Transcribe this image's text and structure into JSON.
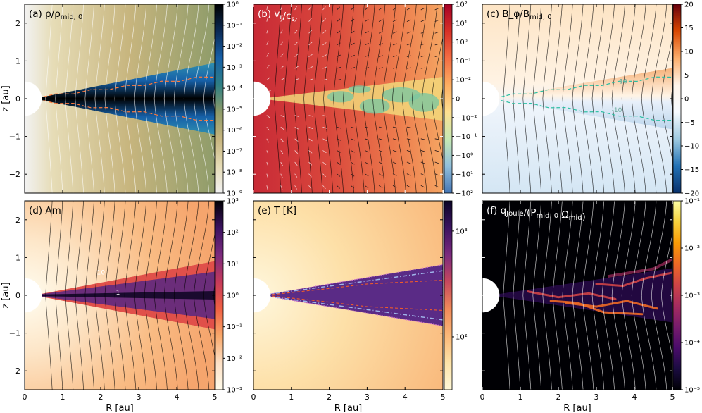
{
  "chart_data": {
    "type": "heatmap",
    "figure": "Six-panel disk simulation maps",
    "x_axis": {
      "label": "R [au]",
      "range": [
        0,
        5
      ],
      "ticks": [
        "0",
        "1",
        "2",
        "3",
        "4",
        "5"
      ]
    },
    "y_axis": {
      "label": "z [au]",
      "range": [
        -2.5,
        2.5
      ],
      "ticks": [
        "2",
        "1",
        "0",
        "−1",
        "−2"
      ],
      "tick_values": [
        2,
        1,
        0,
        -1,
        -2
      ]
    },
    "panels": [
      {
        "id": "a",
        "title": "(a) ρ/ρ_mid, 0",
        "title_color": "#000000",
        "colormap": [
          "#f2f2f2",
          "#e6dcb6",
          "#c7b57e",
          "#8f9c6a",
          "#2f7f83",
          "#1660a8",
          "#0b2a55",
          "#000000"
        ],
        "colorbar": {
          "scale": "log",
          "labels": [
            "10^0",
            "10^−1",
            "10^−2",
            "10^−3",
            "10^−4",
            "10^−5",
            "10^−6",
            "10^−7",
            "10^−8",
            "10^−9"
          ]
        },
        "field_line_color": "#ffffff"
      },
      {
        "id": "b",
        "title": "(b) v_r/c_s",
        "title_color": "#ffffff",
        "colormap": [
          "#4575b4",
          "#91bfdb",
          "#c7e9b4",
          "#fee090",
          "#fdae61",
          "#f46d43",
          "#d73027",
          "#a50026"
        ],
        "colorbar": {
          "scale": "symlog",
          "labels": [
            "10^2",
            "10^1",
            "10^0",
            "10^−1",
            "10^−2",
            "0",
            "−10^−2",
            "−10^−1",
            "−10^0",
            "−10^1",
            "−10^2"
          ]
        },
        "field_line_color": "#000000"
      },
      {
        "id": "c",
        "title": "(c) B_φ/B_mid, 0",
        "title_color": "#000000",
        "colormap": [
          "#08306b",
          "#2171b5",
          "#9ecae1",
          "#f7fbff",
          "#fff5eb",
          "#fdae6b",
          "#d94801",
          "#67000d"
        ],
        "colorbar": {
          "scale": "linear",
          "labels": [
            "20",
            "15",
            "10",
            "5",
            "0",
            "−5",
            "−10",
            "−15",
            "−20"
          ]
        },
        "field_line_color": "#000000",
        "contour_labels": [
          "10",
          "-10"
        ]
      },
      {
        "id": "d",
        "title": "(d) Am",
        "title_color": "#000000",
        "colormap": [
          "#fffbea",
          "#fde0c5",
          "#f9a86a",
          "#f06043",
          "#c63a5a",
          "#7b2a7e",
          "#3b1360",
          "#000004"
        ],
        "colorbar": {
          "scale": "log",
          "labels": [
            "10^3",
            "10^2",
            "10^1",
            "10^0",
            "10^−1",
            "10^−2",
            "10^−3"
          ]
        },
        "field_line_color": "#000000",
        "contour_labels": [
          "10",
          "1"
        ]
      },
      {
        "id": "e",
        "title": "(e) T [K]",
        "title_color": "#000000",
        "colormap": [
          "#fff8d8",
          "#fde3a8",
          "#fbb878",
          "#f08a5a",
          "#c6485e",
          "#7b2a7e",
          "#3b1360",
          "#0b0426"
        ],
        "colorbar": {
          "scale": "log",
          "labels": [
            "10^3",
            "10^2"
          ]
        },
        "field_line_color": "none"
      },
      {
        "id": "f",
        "title": "(f) q_Joule/(P_mid, 0 Ω_mid)",
        "title_color": "#ffffff",
        "colormap": [
          "#000004",
          "#1b0c41",
          "#4a0c6b",
          "#781c6d",
          "#a52c60",
          "#cf4446",
          "#ed6925",
          "#fb9b06",
          "#f7d13d",
          "#fcffa4"
        ],
        "colorbar": {
          "scale": "log",
          "labels": [
            "10^−1",
            "10^−2",
            "10^−3",
            "10^−4",
            "10^−5"
          ]
        },
        "field_line_color": "#ffffff"
      }
    ]
  }
}
